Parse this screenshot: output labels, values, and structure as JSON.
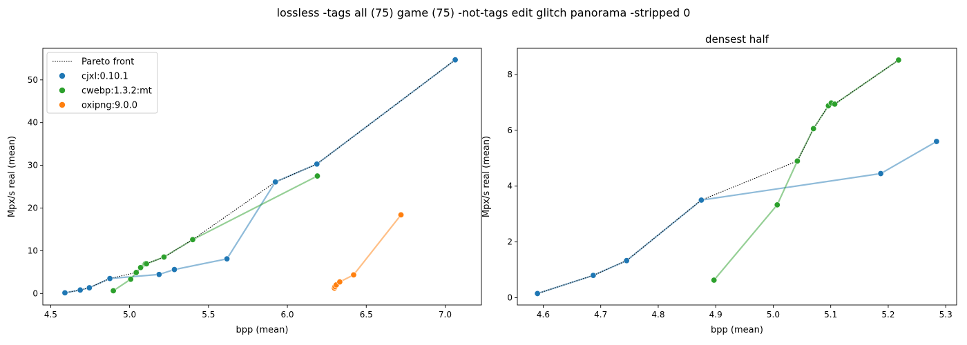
{
  "suptitle": "lossless -tags all (75) game (75) -not-tags edit glitch panorama -stripped 0",
  "chart_data": [
    {
      "type": "scatter",
      "title": "",
      "xlabel": "bpp (mean)",
      "ylabel": "Mpx/s real (mean)",
      "xlim": [
        4.45,
        7.23
      ],
      "ylim": [
        -2.7,
        57.4
      ],
      "xticks": [
        "4.5",
        "5.0",
        "5.5",
        "6.0",
        "6.5",
        "7.0"
      ],
      "yticks": [
        "0",
        "10",
        "20",
        "30",
        "40",
        "50"
      ],
      "legend": {
        "placement": "top-left",
        "entries": [
          "Pareto front",
          "cjxl:0.10.1",
          "cwebp:1.3.2:mt",
          "oxipng:9.0.0"
        ]
      },
      "series": [
        {
          "name": "cjxl:0.10.1",
          "color": "#1f77b4",
          "x": [
            4.59,
            4.687,
            4.745,
            4.875,
            5.187,
            5.284,
            5.617,
            5.924,
            6.187,
            7.064
          ],
          "y": [
            0.15,
            0.8,
            1.33,
            3.5,
            4.45,
            5.6,
            8.1,
            26.1,
            30.3,
            54.7
          ]
        },
        {
          "name": "cwebp:1.3.2:mt",
          "color": "#2ca02c",
          "x": [
            4.897,
            5.007,
            5.042,
            5.07,
            5.096,
            5.101,
            5.107,
            5.218,
            5.4,
            6.19
          ],
          "y": [
            0.63,
            3.33,
            4.9,
            6.06,
            6.88,
            6.98,
            6.94,
            8.52,
            12.6,
            27.5
          ]
        },
        {
          "name": "oxipng:9.0.0",
          "color": "#ff7f0e",
          "x": [
            6.298,
            6.302,
            6.31,
            6.332,
            6.42,
            6.72
          ],
          "y": [
            1.25,
            1.6,
            2.0,
            2.7,
            4.35,
            18.4
          ]
        }
      ],
      "pareto_front": {
        "x": [
          4.59,
          4.687,
          4.745,
          4.875,
          5.042,
          5.07,
          5.096,
          5.101,
          5.107,
          5.218,
          5.4,
          5.924,
          6.187,
          7.064
        ],
        "y": [
          0.15,
          0.8,
          1.33,
          3.5,
          4.9,
          6.06,
          6.88,
          6.98,
          6.94,
          8.52,
          12.6,
          26.1,
          30.3,
          54.7
        ]
      }
    },
    {
      "type": "scatter",
      "title": "densest half",
      "xlabel": "bpp (mean)",
      "ylabel": "Mpx/s real (mean)",
      "xlim": [
        4.555,
        5.319
      ],
      "ylim": [
        -0.26,
        8.94
      ],
      "xticks": [
        "4.6",
        "4.7",
        "4.8",
        "4.9",
        "5.0",
        "5.1",
        "5.2",
        "5.3"
      ],
      "yticks": [
        "0",
        "2",
        "4",
        "6",
        "8"
      ],
      "series": [
        {
          "name": "cjxl:0.10.1",
          "color": "#1f77b4",
          "x": [
            4.59,
            4.687,
            4.745,
            4.875,
            5.187,
            5.284
          ],
          "y": [
            0.15,
            0.8,
            1.33,
            3.5,
            4.45,
            5.6
          ]
        },
        {
          "name": "cwebp:1.3.2:mt",
          "color": "#2ca02c",
          "x": [
            4.897,
            5.007,
            5.042,
            5.07,
            5.096,
            5.101,
            5.107,
            5.218
          ],
          "y": [
            0.63,
            3.33,
            4.9,
            6.06,
            6.88,
            6.98,
            6.94,
            8.52
          ]
        }
      ],
      "pareto_front": {
        "x": [
          4.59,
          4.687,
          4.745,
          4.875,
          5.042,
          5.07,
          5.096,
          5.101,
          5.107,
          5.218
        ],
        "y": [
          0.15,
          0.8,
          1.33,
          3.5,
          4.9,
          6.06,
          6.88,
          6.98,
          6.94,
          8.52
        ]
      }
    }
  ]
}
